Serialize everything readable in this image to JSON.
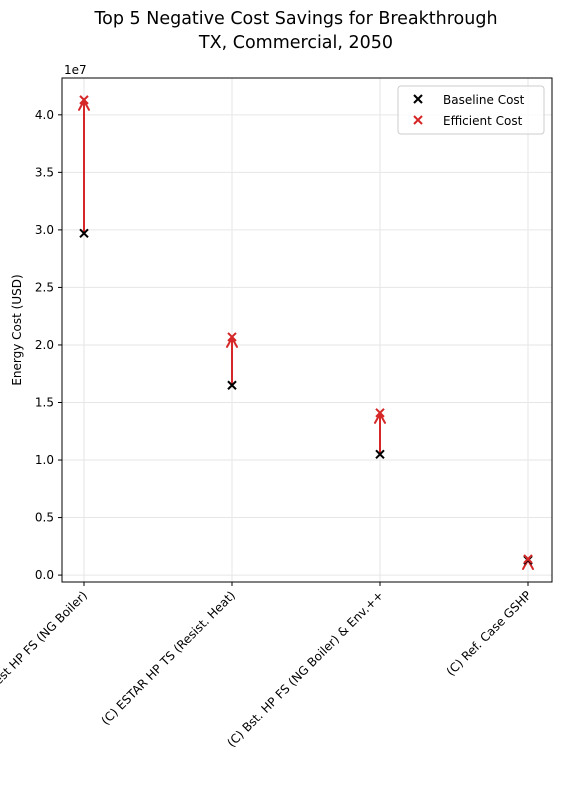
{
  "chart_data": {
    "type": "scatter",
    "title": "Top 5 Negative Cost Savings for Breakthrough\nTX, Commercial, 2050",
    "title_lines": [
      "Top 5 Negative Cost Savings for Breakthrough",
      "TX, Commercial, 2050"
    ],
    "xlabel": "",
    "ylabel": "Energy Cost (USD)",
    "y_multiplier_label": "1e7",
    "ylim": [
      -0.06,
      4.32
    ],
    "y_ticks": [
      0.0,
      0.5,
      1.0,
      1.5,
      2.0,
      2.5,
      3.0,
      3.5,
      4.0
    ],
    "y_tick_labels": [
      "0.0",
      "0.5",
      "1.0",
      "1.5",
      "2.0",
      "2.5",
      "3.0",
      "3.5",
      "4.0"
    ],
    "categories": [
      "(C) Best HP FS (NG Boiler)",
      "(C) ESTAR HP TS (Resist. Heat)",
      "(C) Bst. HP FS (NG Boiler) & Env.++",
      "(C) Ref. Case GSHP"
    ],
    "series": [
      {
        "name": "Baseline Cost",
        "color": "#000000",
        "marker": "x",
        "values": [
          2.97,
          1.65,
          1.05,
          0.13
        ]
      },
      {
        "name": "Efficient Cost",
        "color": "#d62728",
        "marker": "x",
        "values": [
          4.13,
          2.07,
          1.41,
          0.14
        ]
      }
    ],
    "arrow_color": "#d62728",
    "grid": true,
    "legend_position": "top-right"
  }
}
